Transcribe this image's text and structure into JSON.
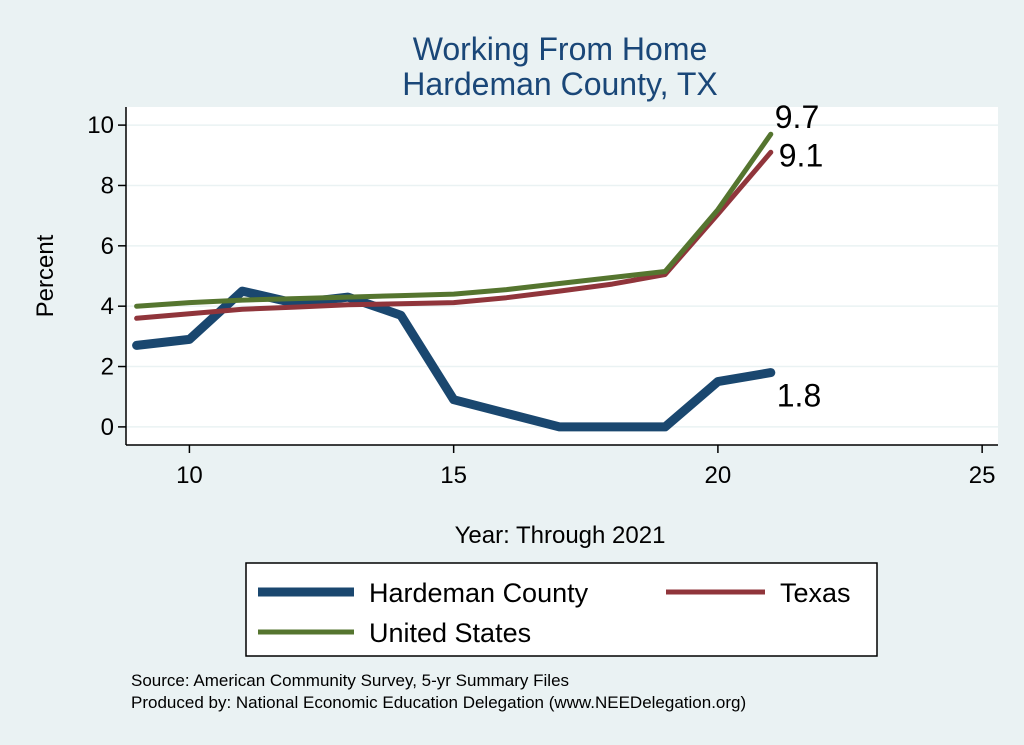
{
  "chart_data": {
    "type": "line",
    "title": "Working From Home",
    "subtitle": "Hardeman County, TX",
    "xlabel": "Year: Through 2021",
    "ylabel": "Percent",
    "xlim": [
      8.8,
      25.3
    ],
    "ylim": [
      -0.6,
      10.6
    ],
    "xticks": [
      10,
      15,
      20,
      25
    ],
    "yticks": [
      0,
      2,
      4,
      6,
      8,
      10
    ],
    "grid": true,
    "legend_position": "bottom",
    "series": [
      {
        "name": "Hardeman County",
        "color": "#1a476f",
        "x": [
          9,
          10,
          11,
          12,
          13,
          14,
          15,
          16,
          17,
          18,
          19,
          20,
          21
        ],
        "y": [
          2.7,
          2.9,
          4.5,
          4.1,
          4.3,
          3.7,
          0.9,
          0.45,
          0.0,
          0.0,
          0.0,
          1.5,
          1.8
        ],
        "end_label": "1.8"
      },
      {
        "name": "Texas",
        "color": "#90353b",
        "x": [
          9,
          10,
          11,
          12,
          13,
          14,
          15,
          16,
          17,
          18,
          19,
          20,
          21
        ],
        "y": [
          3.6,
          3.75,
          3.9,
          3.97,
          4.05,
          4.08,
          4.12,
          4.28,
          4.5,
          4.73,
          5.05,
          7.05,
          9.1
        ],
        "end_label": "9.1"
      },
      {
        "name": "United States",
        "color": "#55752f",
        "x": [
          9,
          10,
          11,
          12,
          13,
          14,
          15,
          16,
          17,
          18,
          19,
          20,
          21
        ],
        "y": [
          4.0,
          4.12,
          4.2,
          4.25,
          4.3,
          4.35,
          4.4,
          4.55,
          4.75,
          4.95,
          5.15,
          7.2,
          9.7
        ],
        "end_label": "9.7"
      }
    ]
  },
  "source_note": "Source: American Community Survey, 5-yr Summary Files",
  "produced_note": "Produced by: National Economic Education Delegation (www.NEEDelegation.org)"
}
